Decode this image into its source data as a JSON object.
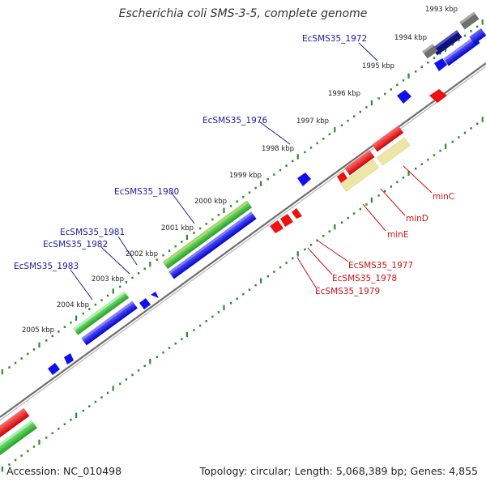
{
  "title": "Escherichia coli SMS-3-5, complete genome",
  "accession": "Accession: NC_010498",
  "summary": "Topology: circular; Length: 5,068,389 bp; Genes: 4,855",
  "colors": {
    "backbone": "#8a8a8a",
    "tick": "#2e8b2e",
    "forward_gene": "#1010ee",
    "reverse_gene": "#ee1010",
    "gene_label_forward": "#1a1aa8",
    "gene_label_reverse": "#cc1111",
    "rrna": "#33bb33",
    "trna": "#8db82a",
    "other": "#777777",
    "dark_gene": "#101080",
    "pseudo": "#e8e0a0"
  },
  "kbp_ticks": [
    "1993 kbp",
    "1994 kbp",
    "1995 kbp",
    "1996 kbp",
    "1997 kbp",
    "1998 kbp",
    "1999 kbp",
    "2000 kbp",
    "2001 kbp",
    "2002 kbp",
    "2003 kbp",
    "2004 kbp",
    "2005 kbp"
  ],
  "gene_labels_forward": [
    "EcSMS35_1972",
    "EcSMS35_1976",
    "EcSMS35_1980",
    "EcSMS35_1981",
    "EcSMS35_1982",
    "EcSMS35_1983"
  ],
  "gene_labels_reverse": [
    "minC",
    "minD",
    "minE",
    "EcSMS35_1977",
    "EcSMS35_1978",
    "EcSMS35_1979"
  ]
}
